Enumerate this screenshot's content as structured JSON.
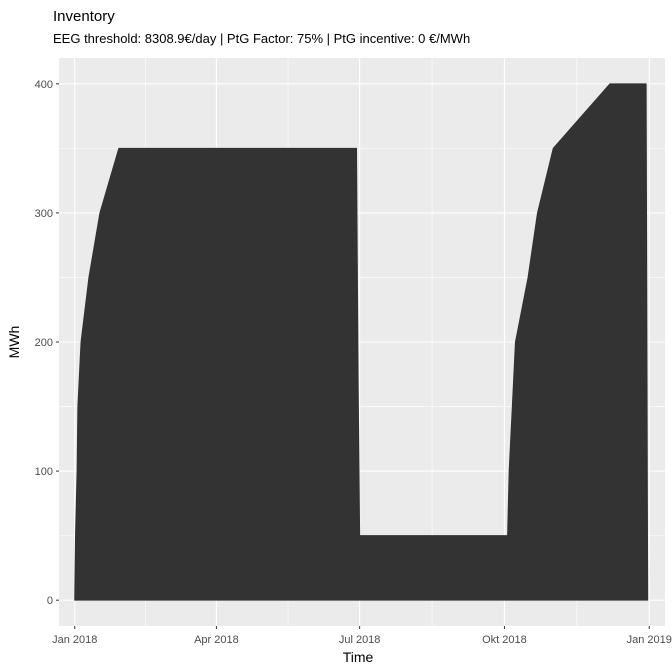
{
  "chart_data": {
    "type": "area",
    "title": "Inventory",
    "subtitle": "EEG threshold: 8308.9€/day | PtG Factor: 75% | PtG incentive: 0 €/MWh",
    "xlabel": "Time",
    "ylabel": "MWh",
    "x_unit": "days since 2018-01-01",
    "xlim": [
      -10,
      375
    ],
    "ylim": [
      -20,
      420
    ],
    "x_ticks": [
      {
        "label": "Jan 2018",
        "value": 0
      },
      {
        "label": "Apr 2018",
        "value": 90
      },
      {
        "label": "Jul 2018",
        "value": 181
      },
      {
        "label": "Okt 2018",
        "value": 273
      },
      {
        "label": "Jan 2019",
        "value": 365
      }
    ],
    "y_ticks": [
      0,
      100,
      200,
      300,
      400
    ],
    "series": [
      {
        "name": "Inventory",
        "color": "#333333",
        "points": [
          [
            0,
            0
          ],
          [
            0.5,
            50
          ],
          [
            1,
            75
          ],
          [
            1.5,
            100
          ],
          [
            2,
            150
          ],
          [
            3,
            175
          ],
          [
            4,
            200
          ],
          [
            9,
            250
          ],
          [
            16,
            300
          ],
          [
            28,
            350
          ],
          [
            179,
            350
          ],
          [
            180,
            175
          ],
          [
            181,
            50
          ],
          [
            275,
            50
          ],
          [
            276,
            100
          ],
          [
            278,
            150
          ],
          [
            280,
            200
          ],
          [
            288,
            250
          ],
          [
            294,
            300
          ],
          [
            304,
            350
          ],
          [
            340,
            400
          ],
          [
            363,
            400
          ],
          [
            364,
            0
          ]
        ]
      }
    ]
  },
  "colors": {
    "panel_background": "#ebebeb",
    "grid_major": "#ffffff",
    "fill": "#333333"
  }
}
